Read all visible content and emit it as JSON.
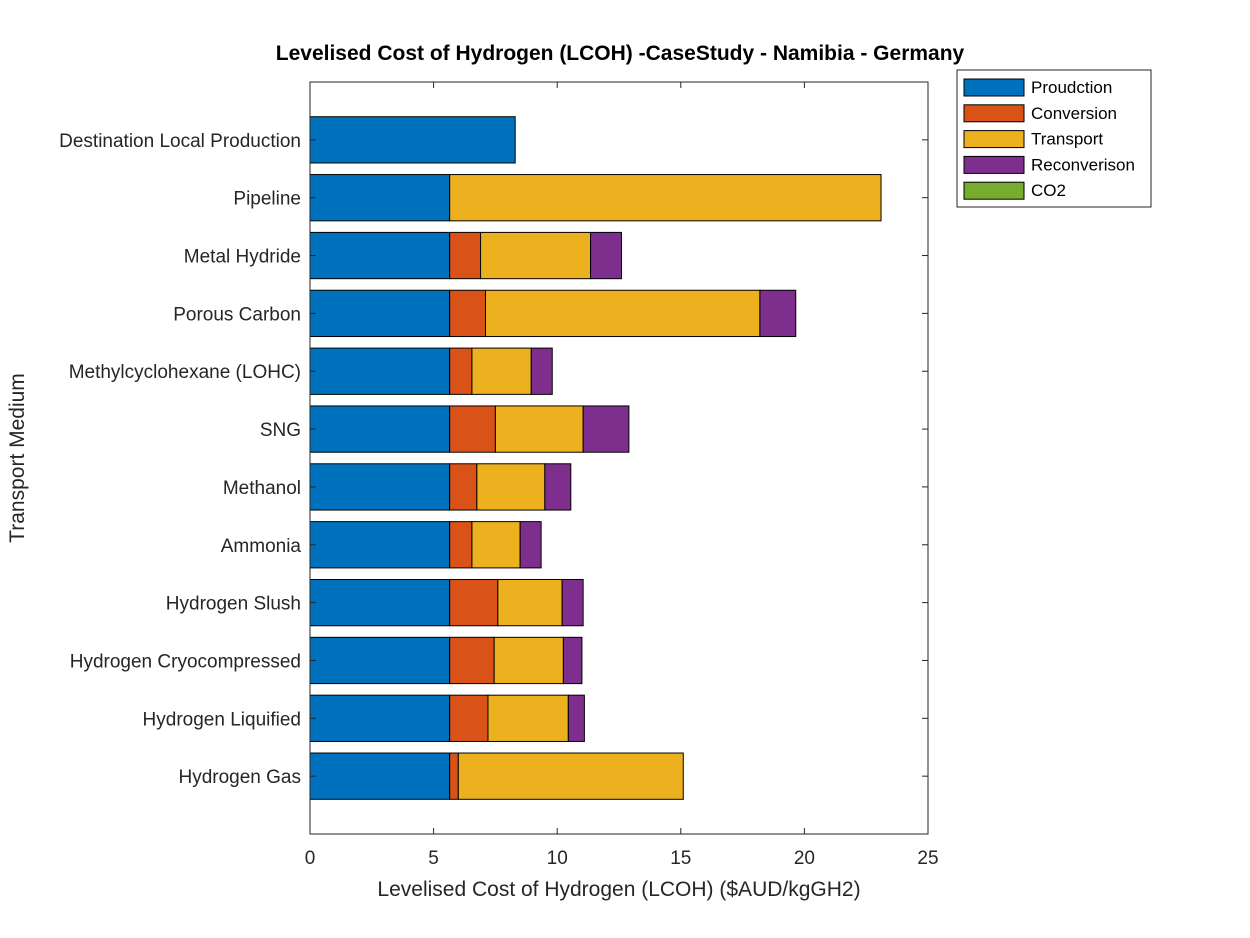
{
  "chart_data": {
    "type": "bar",
    "orientation": "horizontal",
    "stacked": true,
    "title": "Levelised Cost of Hydrogen (LCOH) -CaseStudy - Namibia - Germany",
    "xlabel": "Levelised Cost of Hydrogen (LCOH) ($AUD/kgGH2)",
    "ylabel": "Transport Medium",
    "xlim": [
      0,
      25
    ],
    "xticks": [
      0,
      5,
      10,
      15,
      20,
      25
    ],
    "grid": false,
    "legend_position": "outside-top-right",
    "categories": [
      "Destination Local Production",
      "Pipeline",
      "Metal Hydride",
      "Porous Carbon",
      "Methylcyclohexane (LOHC)",
      "SNG",
      "Methanol",
      "Ammonia",
      "Hydrogen Slush",
      "Hydrogen Cryocompressed",
      "Hydrogen Liquified",
      "Hydrogen Gas"
    ],
    "series": [
      {
        "name": "Proudction",
        "color": "#0072BD",
        "values": [
          8.3,
          5.65,
          5.65,
          5.65,
          5.65,
          5.65,
          5.65,
          5.65,
          5.65,
          5.65,
          5.65,
          5.65
        ]
      },
      {
        "name": "Conversion",
        "color": "#D95319",
        "values": [
          0,
          0,
          1.25,
          1.45,
          0.9,
          1.85,
          1.1,
          0.9,
          1.95,
          1.8,
          1.55,
          0.35
        ]
      },
      {
        "name": "Transport",
        "color": "#EDB120",
        "values": [
          0,
          17.45,
          4.45,
          11.1,
          2.4,
          3.55,
          2.75,
          1.95,
          2.6,
          2.8,
          3.25,
          9.1
        ]
      },
      {
        "name": "Reconverison",
        "color": "#7E2F8E",
        "values": [
          0,
          0,
          1.25,
          1.45,
          0.85,
          1.85,
          1.05,
          0.85,
          0.85,
          0.75,
          0.65,
          0
        ]
      },
      {
        "name": "CO2",
        "color": "#77AC30",
        "values": [
          0,
          0,
          0,
          0,
          0,
          0,
          0,
          0,
          0,
          0,
          0,
          0
        ]
      }
    ]
  }
}
